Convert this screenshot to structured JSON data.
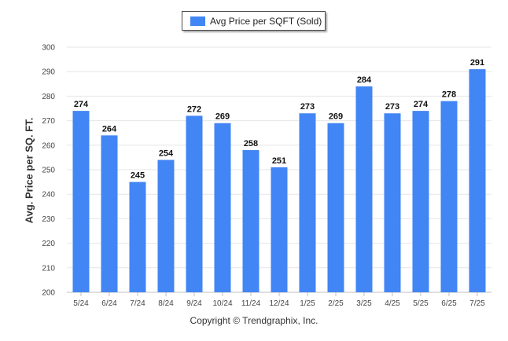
{
  "colors": {
    "bar": "#4285f4",
    "grid": "#e6e6e6",
    "axis": "#c0c0c0"
  },
  "footer": {
    "copyright": "Copyright © Trendgraphix, Inc."
  },
  "chart_data": {
    "type": "bar",
    "categories": [
      "5/24",
      "6/24",
      "7/24",
      "8/24",
      "9/24",
      "10/24",
      "11/24",
      "12/24",
      "1/25",
      "2/25",
      "3/25",
      "4/25",
      "5/25",
      "6/25",
      "7/25"
    ],
    "series": [
      {
        "name": "Avg Price per SQFT (Sold)",
        "values": [
          274,
          264,
          245,
          254,
          272,
          269,
          258,
          251,
          273,
          269,
          284,
          273,
          274,
          278,
          291
        ]
      }
    ],
    "ylabel": "Avg. Price per SQ. FT.",
    "xlabel": "",
    "ylim": [
      200,
      300
    ],
    "yticks": [
      200,
      210,
      220,
      230,
      240,
      250,
      260,
      270,
      280,
      290,
      300
    ],
    "grid": true,
    "legend": "top-center",
    "data_labels": true
  }
}
